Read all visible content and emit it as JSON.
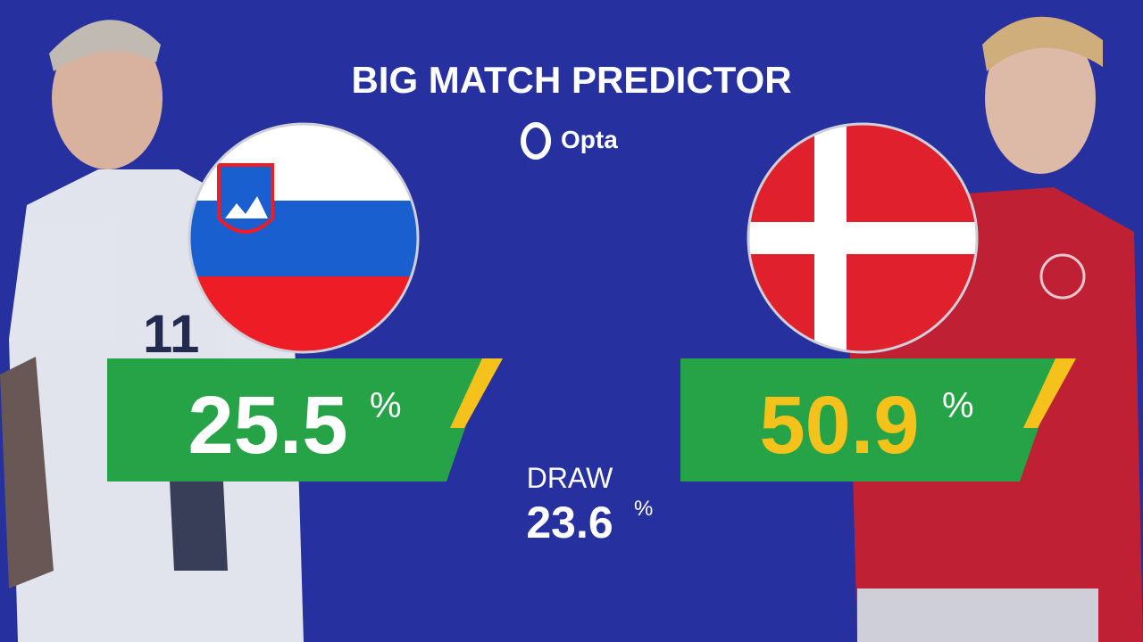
{
  "header": {
    "title": "BIG MATCH PREDICTOR",
    "brand": "Opta"
  },
  "home": {
    "value": 25.5
  },
  "away": {
    "value": 50.9
  },
  "draw": {
    "label": "DRAW",
    "value": 23.6
  },
  "unit": "%"
}
